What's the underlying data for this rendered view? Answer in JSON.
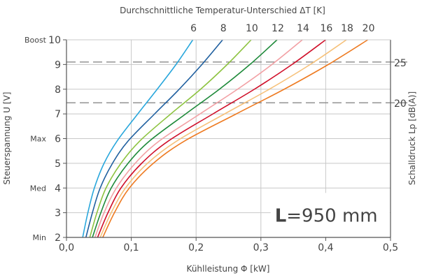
{
  "chart_data": {
    "type": "line",
    "title": "Durchschnittliche Temperatur-Unterschied ΔT [K]",
    "xlabel": "Kühlleistung Φ [kW]",
    "ylabel": "Steuerspannung U [V]",
    "y2label": "Schalldruck Lp [dB(A)]",
    "xlim": [
      0,
      0.5
    ],
    "ylim": [
      2,
      10
    ],
    "x_ticks": [
      "0,0",
      "0,1",
      "0,2",
      "0,3",
      "0,4",
      "0,5"
    ],
    "y_ticks": [
      "2",
      "3",
      "4",
      "5",
      "6",
      "7",
      "8",
      "9",
      "10"
    ],
    "y_level_labels": [
      {
        "y": 10,
        "text": "Boost"
      },
      {
        "y": 6,
        "text": "Max"
      },
      {
        "y": 4,
        "text": "Med"
      },
      {
        "y": 2,
        "text": "Min"
      }
    ],
    "sound_levels": [
      {
        "y": 9.1,
        "text": "25"
      },
      {
        "y": 7.45,
        "text": "20"
      }
    ],
    "annotation": {
      "prefix": "L",
      "text": "=950 mm"
    },
    "grid": true,
    "series": [
      {
        "name": "6",
        "color": "#29a7dc",
        "points": [
          [
            0.025,
            2
          ],
          [
            0.033,
            3
          ],
          [
            0.043,
            4
          ],
          [
            0.058,
            5
          ],
          [
            0.078,
            5.9
          ],
          [
            0.11,
            7
          ],
          [
            0.14,
            8
          ],
          [
            0.169,
            9
          ],
          [
            0.195,
            10
          ]
        ]
      },
      {
        "name": "8",
        "color": "#1f5f9f",
        "points": [
          [
            0.03,
            2
          ],
          [
            0.04,
            3
          ],
          [
            0.052,
            4
          ],
          [
            0.071,
            5
          ],
          [
            0.095,
            5.9
          ],
          [
            0.136,
            7
          ],
          [
            0.174,
            8
          ],
          [
            0.209,
            9
          ],
          [
            0.241,
            10
          ]
        ]
      },
      {
        "name": "10",
        "color": "#8dc340",
        "points": [
          [
            0.036,
            2
          ],
          [
            0.047,
            3
          ],
          [
            0.061,
            4
          ],
          [
            0.084,
            5
          ],
          [
            0.113,
            5.9
          ],
          [
            0.161,
            7
          ],
          [
            0.207,
            8
          ],
          [
            0.248,
            9
          ],
          [
            0.285,
            10
          ]
        ]
      },
      {
        "name": "12",
        "color": "#1e8a3a",
        "points": [
          [
            0.04,
            2
          ],
          [
            0.053,
            3
          ],
          [
            0.069,
            4
          ],
          [
            0.095,
            5
          ],
          [
            0.128,
            5.9
          ],
          [
            0.184,
            7
          ],
          [
            0.236,
            8
          ],
          [
            0.283,
            9
          ],
          [
            0.325,
            10
          ]
        ]
      },
      {
        "name": "14",
        "color": "#f2a0a4",
        "points": [
          [
            0.044,
            2
          ],
          [
            0.058,
            3
          ],
          [
            0.077,
            4
          ],
          [
            0.106,
            5
          ],
          [
            0.143,
            5.9
          ],
          [
            0.206,
            7
          ],
          [
            0.264,
            8
          ],
          [
            0.317,
            9
          ],
          [
            0.364,
            10
          ]
        ]
      },
      {
        "name": "16",
        "color": "#d0102a",
        "points": [
          [
            0.048,
            2
          ],
          [
            0.064,
            3
          ],
          [
            0.084,
            4
          ],
          [
            0.116,
            5
          ],
          [
            0.157,
            5.9
          ],
          [
            0.226,
            7
          ],
          [
            0.29,
            8
          ],
          [
            0.348,
            9
          ],
          [
            0.4,
            10
          ]
        ]
      },
      {
        "name": "18",
        "color": "#f6c17a",
        "points": [
          [
            0.052,
            2
          ],
          [
            0.069,
            3
          ],
          [
            0.091,
            4
          ],
          [
            0.125,
            5
          ],
          [
            0.17,
            5.9
          ],
          [
            0.244,
            7
          ],
          [
            0.313,
            8
          ],
          [
            0.376,
            9
          ],
          [
            0.432,
            10
          ]
        ]
      },
      {
        "name": "20",
        "color": "#ee7b22",
        "points": [
          [
            0.056,
            2
          ],
          [
            0.074,
            3
          ],
          [
            0.097,
            4
          ],
          [
            0.134,
            5
          ],
          [
            0.182,
            5.9
          ],
          [
            0.262,
            7
          ],
          [
            0.336,
            8
          ],
          [
            0.404,
            9
          ],
          [
            0.465,
            10
          ]
        ]
      }
    ]
  }
}
